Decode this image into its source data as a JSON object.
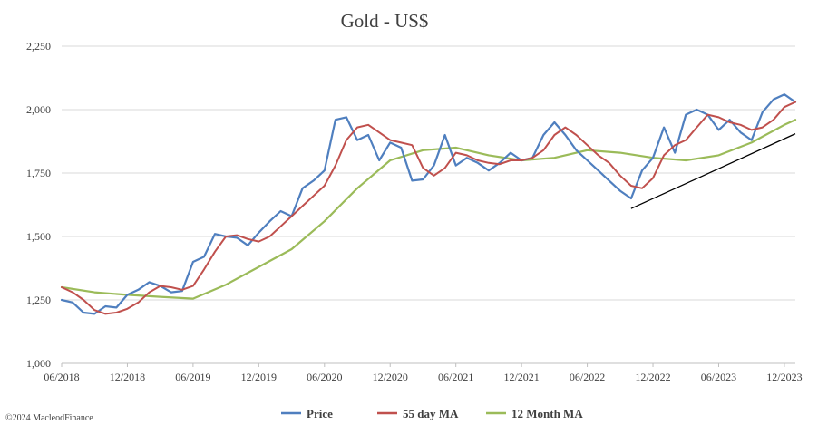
{
  "copyright": "©2024 MacleodFinance",
  "colors": {
    "price": "#4F7FBF",
    "ma55": "#C0504D",
    "ma12": "#9BBB59",
    "trendline": "#000000",
    "grid": "#D9D9D9"
  },
  "chart_data": {
    "type": "line",
    "title": "Gold - US$",
    "xlabel": "",
    "ylabel": "",
    "ylim": [
      1000,
      2250
    ],
    "yticks": [
      "1,000",
      "1,250",
      "1,500",
      "1,750",
      "2,000",
      "2,250"
    ],
    "xticks": [
      "06/2018",
      "12/2018",
      "06/2019",
      "12/2019",
      "06/2020",
      "12/2020",
      "06/2021",
      "12/2021",
      "06/2022",
      "12/2022",
      "06/2023",
      "12/2023"
    ],
    "xrange": [
      "2018-06",
      "2024-01"
    ],
    "grid": "horizontal",
    "legend": "bottom",
    "series": [
      {
        "name": "Price",
        "x": [
          "2018-06",
          "2018-07",
          "2018-08",
          "2018-09",
          "2018-10",
          "2018-11",
          "2018-12",
          "2019-01",
          "2019-02",
          "2019-03",
          "2019-04",
          "2019-05",
          "2019-06",
          "2019-07",
          "2019-08",
          "2019-09",
          "2019-10",
          "2019-11",
          "2019-12",
          "2020-01",
          "2020-02",
          "2020-03",
          "2020-04",
          "2020-05",
          "2020-06",
          "2020-07",
          "2020-08",
          "2020-09",
          "2020-10",
          "2020-11",
          "2020-12",
          "2021-01",
          "2021-02",
          "2021-03",
          "2021-04",
          "2021-05",
          "2021-06",
          "2021-07",
          "2021-08",
          "2021-09",
          "2021-10",
          "2021-11",
          "2021-12",
          "2022-01",
          "2022-02",
          "2022-03",
          "2022-04",
          "2022-05",
          "2022-06",
          "2022-07",
          "2022-08",
          "2022-09",
          "2022-10",
          "2022-11",
          "2022-12",
          "2023-01",
          "2023-02",
          "2023-03",
          "2023-04",
          "2023-05",
          "2023-06",
          "2023-07",
          "2023-08",
          "2023-09",
          "2023-10",
          "2023-11",
          "2023-12",
          "2024-01"
        ],
        "values": [
          1250,
          1240,
          1200,
          1195,
          1225,
          1220,
          1270,
          1290,
          1320,
          1305,
          1280,
          1285,
          1400,
          1420,
          1510,
          1500,
          1495,
          1465,
          1515,
          1560,
          1600,
          1580,
          1690,
          1720,
          1760,
          1960,
          1970,
          1880,
          1900,
          1800,
          1870,
          1850,
          1720,
          1725,
          1780,
          1900,
          1780,
          1810,
          1790,
          1760,
          1790,
          1830,
          1800,
          1810,
          1900,
          1950,
          1900,
          1840,
          1800,
          1760,
          1720,
          1680,
          1650,
          1760,
          1810,
          1930,
          1830,
          1980,
          2000,
          1980,
          1920,
          1960,
          1910,
          1880,
          1990,
          2040,
          2060,
          2030
        ]
      },
      {
        "name": "55 day MA",
        "x": [
          "2018-06",
          "2018-07",
          "2018-08",
          "2018-09",
          "2018-10",
          "2018-11",
          "2018-12",
          "2019-01",
          "2019-02",
          "2019-03",
          "2019-04",
          "2019-05",
          "2019-06",
          "2019-07",
          "2019-08",
          "2019-09",
          "2019-10",
          "2019-11",
          "2019-12",
          "2020-01",
          "2020-02",
          "2020-03",
          "2020-04",
          "2020-05",
          "2020-06",
          "2020-07",
          "2020-08",
          "2020-09",
          "2020-10",
          "2020-11",
          "2020-12",
          "2021-01",
          "2021-02",
          "2021-03",
          "2021-04",
          "2021-05",
          "2021-06",
          "2021-07",
          "2021-08",
          "2021-09",
          "2021-10",
          "2021-11",
          "2021-12",
          "2022-01",
          "2022-02",
          "2022-03",
          "2022-04",
          "2022-05",
          "2022-06",
          "2022-07",
          "2022-08",
          "2022-09",
          "2022-10",
          "2022-11",
          "2022-12",
          "2023-01",
          "2023-02",
          "2023-03",
          "2023-04",
          "2023-05",
          "2023-06",
          "2023-07",
          "2023-08",
          "2023-09",
          "2023-10",
          "2023-11",
          "2023-12",
          "2024-01"
        ],
        "values": [
          1300,
          1280,
          1250,
          1210,
          1195,
          1200,
          1215,
          1240,
          1280,
          1305,
          1300,
          1290,
          1305,
          1370,
          1440,
          1500,
          1505,
          1490,
          1480,
          1500,
          1540,
          1580,
          1620,
          1660,
          1700,
          1780,
          1880,
          1930,
          1940,
          1910,
          1880,
          1870,
          1860,
          1770,
          1740,
          1770,
          1830,
          1820,
          1800,
          1790,
          1785,
          1800,
          1800,
          1810,
          1840,
          1900,
          1930,
          1900,
          1860,
          1820,
          1790,
          1740,
          1700,
          1690,
          1730,
          1820,
          1860,
          1880,
          1930,
          1980,
          1970,
          1950,
          1940,
          1920,
          1930,
          1960,
          2010,
          2030
        ]
      },
      {
        "name": "12 Month MA",
        "x": [
          "2018-06",
          "2018-09",
          "2018-12",
          "2019-03",
          "2019-06",
          "2019-09",
          "2019-12",
          "2020-03",
          "2020-06",
          "2020-09",
          "2020-12",
          "2021-03",
          "2021-06",
          "2021-09",
          "2021-12",
          "2022-03",
          "2022-06",
          "2022-09",
          "2022-12",
          "2023-03",
          "2023-06",
          "2023-09",
          "2023-12",
          "2024-01"
        ],
        "values": [
          1300,
          1280,
          1270,
          1262,
          1255,
          1310,
          1380,
          1450,
          1560,
          1690,
          1800,
          1840,
          1850,
          1820,
          1800,
          1810,
          1840,
          1830,
          1810,
          1800,
          1820,
          1870,
          1940,
          1960
        ]
      }
    ],
    "trendline": {
      "x": [
        "2022-10",
        "2024-01"
      ],
      "values": [
        1610,
        1905
      ]
    }
  }
}
